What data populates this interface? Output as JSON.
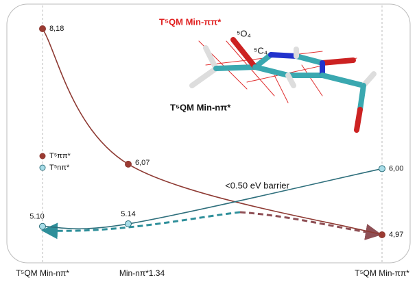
{
  "chart_data": {
    "type": "line",
    "categories": [
      "T⁵QM Min-nπ*",
      "Min-nπ*1.34",
      "T⁵QM Min-ππ*"
    ],
    "series": [
      {
        "name": "T⁵ππ*",
        "color": "#8e3a33",
        "values": [
          8.18,
          6.07,
          4.97
        ],
        "value_labels": [
          "8,18",
          "6,07",
          "4,97"
        ]
      },
      {
        "name": "T⁵nπ*",
        "color": "#2e6f7c",
        "values": [
          5.1,
          5.14,
          6.0
        ],
        "value_labels": [
          "5.10",
          "5.14",
          "6,00"
        ]
      }
    ],
    "annotations": [
      "<0.50 eV barrier",
      "T⁵QM Min-ππ*",
      "⁵O₄",
      "⁵C₄",
      "T⁵QM Min-nπ*"
    ]
  }
}
